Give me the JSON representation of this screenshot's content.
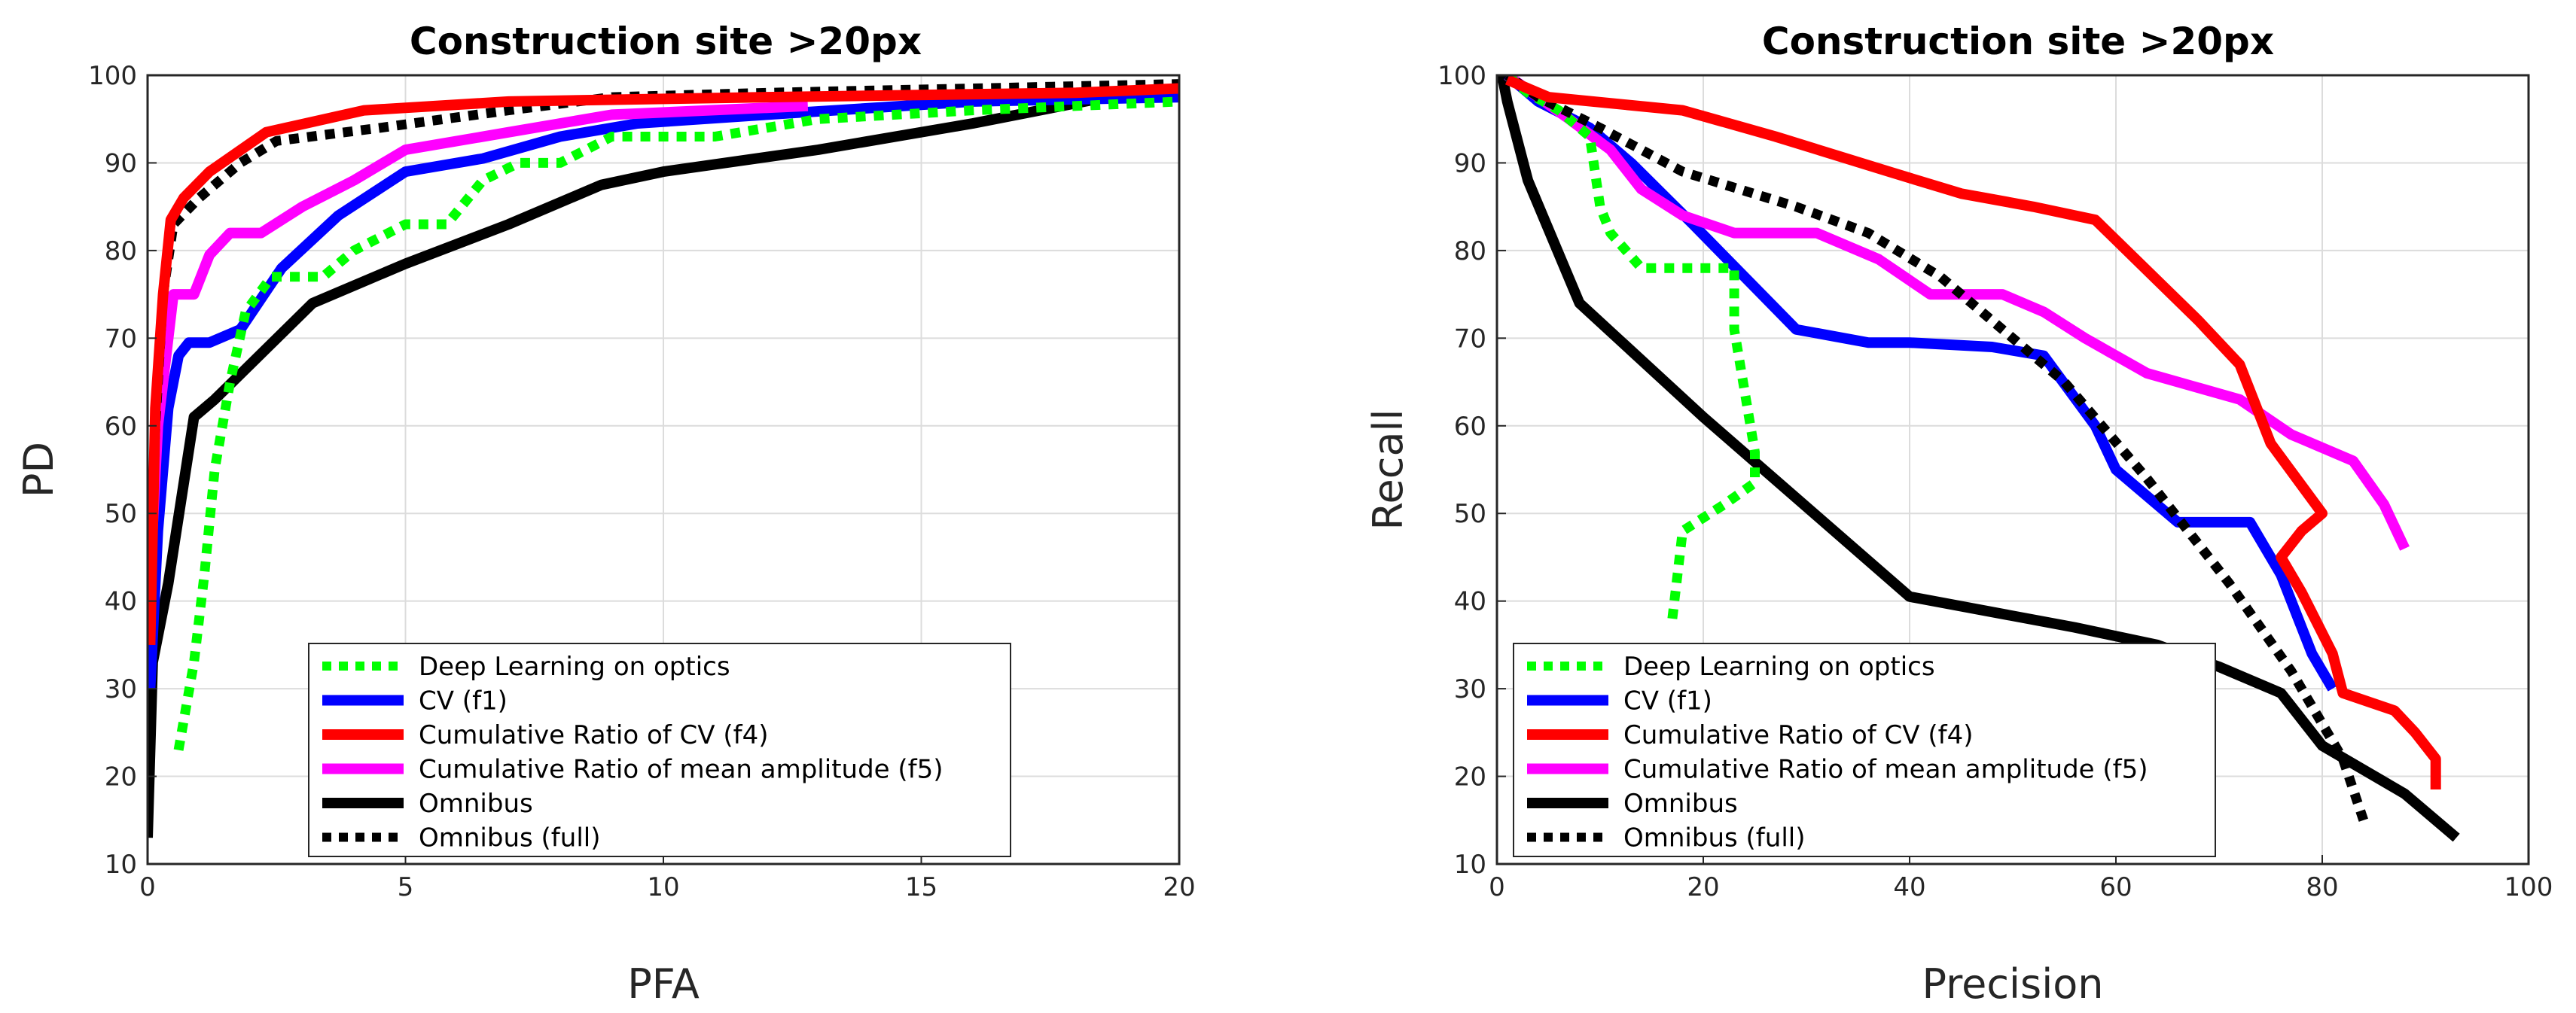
{
  "chart_data": [
    {
      "type": "line",
      "title": "Construction site >20px",
      "xlabel": "PFA",
      "ylabel": "PD",
      "xlim": [
        0,
        20
      ],
      "ylim": [
        10,
        100
      ],
      "xticks": [
        0,
        5,
        10,
        15,
        20
      ],
      "yticks": [
        10,
        20,
        30,
        40,
        50,
        60,
        70,
        80,
        90,
        100
      ],
      "grid": true,
      "legend_position": "bottom-center",
      "series": [
        {
          "name": "Deep Learning on optics",
          "color": "#00ff00",
          "style": "dotted",
          "points": [
            [
              0.6,
              23
            ],
            [
              0.9,
              33
            ],
            [
              1.1,
              43
            ],
            [
              1.3,
              55
            ],
            [
              1.6,
              65
            ],
            [
              1.9,
              73
            ],
            [
              2.4,
              77
            ],
            [
              3.4,
              77
            ],
            [
              4.0,
              80
            ],
            [
              5.0,
              83
            ],
            [
              5.8,
              83
            ],
            [
              6.5,
              88
            ],
            [
              7.2,
              90
            ],
            [
              8.0,
              90
            ],
            [
              9.0,
              93
            ],
            [
              11.0,
              93
            ],
            [
              13.0,
              95
            ],
            [
              16.0,
              96
            ],
            [
              20.0,
              97
            ]
          ]
        },
        {
          "name": "CV (f1)",
          "color": "#0000ff",
          "style": "solid",
          "points": [
            [
              0.05,
              30
            ],
            [
              0.2,
              48
            ],
            [
              0.4,
              62
            ],
            [
              0.6,
              68
            ],
            [
              0.8,
              69.5
            ],
            [
              1.2,
              69.5
            ],
            [
              1.8,
              71
            ],
            [
              2.6,
              78
            ],
            [
              3.7,
              84
            ],
            [
              5.0,
              89
            ],
            [
              6.5,
              90.5
            ],
            [
              8.0,
              93
            ],
            [
              9.5,
              94.5
            ],
            [
              12.0,
              95.5
            ],
            [
              16.0,
              97
            ],
            [
              20.0,
              97.5
            ]
          ]
        },
        {
          "name": "Cumulative Ratio of CV (f4)",
          "color": "#ff0000",
          "style": "solid",
          "points": [
            [
              0.05,
              35
            ],
            [
              0.15,
              62
            ],
            [
              0.3,
              75
            ],
            [
              0.45,
              83.5
            ],
            [
              0.7,
              86
            ],
            [
              1.2,
              89
            ],
            [
              2.3,
              93.5
            ],
            [
              4.2,
              96
            ],
            [
              7.0,
              97
            ],
            [
              12.0,
              97.5
            ],
            [
              18.0,
              98
            ],
            [
              20.0,
              98.5
            ]
          ]
        },
        {
          "name": "Cumulative Ratio of mean amplitude (f5)",
          "color": "#ff00ff",
          "style": "solid",
          "points": [
            [
              0.05,
              43
            ],
            [
              0.2,
              60
            ],
            [
              0.5,
              75
            ],
            [
              0.9,
              75
            ],
            [
              1.2,
              79.5
            ],
            [
              1.6,
              82
            ],
            [
              2.2,
              82
            ],
            [
              3.0,
              85
            ],
            [
              4.0,
              88
            ],
            [
              5.0,
              91.5
            ],
            [
              7.0,
              93.5
            ],
            [
              9.0,
              95.5
            ],
            [
              12.8,
              96.5
            ]
          ]
        },
        {
          "name": "Omnibus",
          "color": "#000000",
          "style": "solid",
          "points": [
            [
              0.0,
              13
            ],
            [
              0.1,
              33
            ],
            [
              0.4,
              42
            ],
            [
              0.9,
              61
            ],
            [
              1.3,
              63
            ],
            [
              3.2,
              74
            ],
            [
              5.0,
              78.5
            ],
            [
              7.0,
              83
            ],
            [
              8.8,
              87.5
            ],
            [
              10.0,
              89
            ],
            [
              13.0,
              91.5
            ],
            [
              16.0,
              94.5
            ],
            [
              18.6,
              97.5
            ],
            [
              20.0,
              97.5
            ]
          ]
        },
        {
          "name": "Omnibus (full)",
          "color": "#000000",
          "style": "dotted",
          "points": [
            [
              0.05,
              40
            ],
            [
              0.15,
              60
            ],
            [
              0.3,
              75
            ],
            [
              0.5,
              83
            ],
            [
              1.0,
              86
            ],
            [
              1.8,
              90
            ],
            [
              2.5,
              92.5
            ],
            [
              4.5,
              94
            ],
            [
              7.0,
              96
            ],
            [
              9.0,
              97.5
            ],
            [
              12.0,
              98
            ],
            [
              16.0,
              98.5
            ],
            [
              20.0,
              99
            ]
          ]
        }
      ]
    },
    {
      "type": "line",
      "title": "Construction site >20px",
      "xlabel": "Precision",
      "ylabel": "Recall",
      "xlim": [
        0,
        100
      ],
      "ylim": [
        10,
        100
      ],
      "xticks": [
        0,
        20,
        40,
        60,
        80,
        100
      ],
      "yticks": [
        10,
        20,
        30,
        40,
        50,
        60,
        70,
        80,
        90,
        100
      ],
      "grid": true,
      "legend_position": "bottom-left",
      "series": [
        {
          "name": "Deep Learning on optics",
          "color": "#00ff00",
          "style": "dotted",
          "points": [
            [
              17,
              38
            ],
            [
              18,
              48
            ],
            [
              22,
              51
            ],
            [
              25,
              53.5
            ],
            [
              25,
              57
            ],
            [
              23,
              71
            ],
            [
              23,
              78
            ],
            [
              18,
              78
            ],
            [
              14,
              78
            ],
            [
              11,
              82
            ],
            [
              10,
              85
            ],
            [
              9,
              93
            ],
            [
              6,
              96
            ],
            [
              3,
              98
            ],
            [
              1,
              100
            ]
          ]
        },
        {
          "name": "CV (f1)",
          "color": "#0000ff",
          "style": "solid",
          "points": [
            [
              81,
              30
            ],
            [
              79,
              34
            ],
            [
              76,
              43
            ],
            [
              73,
              49
            ],
            [
              66,
              49
            ],
            [
              60,
              55
            ],
            [
              58,
              60
            ],
            [
              53,
              68
            ],
            [
              48,
              69
            ],
            [
              40,
              69.5
            ],
            [
              36,
              69.5
            ],
            [
              29,
              71
            ],
            [
              19,
              83
            ],
            [
              13,
              90
            ],
            [
              9,
              94
            ],
            [
              4,
              97
            ],
            [
              1,
              100
            ]
          ]
        },
        {
          "name": "Cumulative Ratio of CV (f4)",
          "color": "#ff0000",
          "style": "solid",
          "points": [
            [
              91,
              18.5
            ],
            [
              91,
              22
            ],
            [
              89,
              25
            ],
            [
              87,
              27.5
            ],
            [
              82,
              29.5
            ],
            [
              81,
              34
            ],
            [
              78,
              41
            ],
            [
              76,
              45
            ],
            [
              78,
              48
            ],
            [
              80,
              50
            ],
            [
              75,
              58
            ],
            [
              72,
              67
            ],
            [
              68,
              72
            ],
            [
              58,
              83.5
            ],
            [
              52,
              85
            ],
            [
              45,
              86.5
            ],
            [
              38,
              89
            ],
            [
              27,
              93
            ],
            [
              18,
              96
            ],
            [
              5,
              97.5
            ],
            [
              1,
              99.5
            ]
          ]
        },
        {
          "name": "Cumulative Ratio of mean amplitude (f5)",
          "color": "#ff00ff",
          "style": "solid",
          "points": [
            [
              88,
              46
            ],
            [
              86,
              51
            ],
            [
              83,
              56
            ],
            [
              77,
              59
            ],
            [
              72,
              63
            ],
            [
              63,
              66
            ],
            [
              57,
              70
            ],
            [
              53,
              73
            ],
            [
              49,
              75
            ],
            [
              42,
              75
            ],
            [
              37,
              79
            ],
            [
              31,
              82
            ],
            [
              23,
              82
            ],
            [
              18,
              84
            ],
            [
              14,
              87
            ],
            [
              11,
              91.5
            ],
            [
              7,
              95
            ],
            [
              4,
              97.5
            ],
            [
              1,
              100
            ]
          ]
        },
        {
          "name": "Omnibus",
          "color": "#000000",
          "style": "solid",
          "points": [
            [
              93,
              13
            ],
            [
              88,
              18
            ],
            [
              80,
              23.5
            ],
            [
              76,
              29.5
            ],
            [
              70,
              32.5
            ],
            [
              64,
              35
            ],
            [
              56,
              37
            ],
            [
              40,
              40.5
            ],
            [
              20,
              61
            ],
            [
              8,
              74
            ],
            [
              3,
              88
            ],
            [
              1,
              97
            ],
            [
              0.5,
              100
            ]
          ]
        },
        {
          "name": "Omnibus (full)",
          "color": "#000000",
          "style": "dotted",
          "points": [
            [
              84,
              15
            ],
            [
              82,
              22
            ],
            [
              77,
              32
            ],
            [
              71,
              42
            ],
            [
              63,
              54
            ],
            [
              55,
              65
            ],
            [
              43,
              77
            ],
            [
              36,
              82
            ],
            [
              29,
              85
            ],
            [
              18,
              89
            ],
            [
              10,
              94
            ],
            [
              4,
              97.5
            ],
            [
              1,
              100
            ]
          ]
        }
      ]
    }
  ]
}
